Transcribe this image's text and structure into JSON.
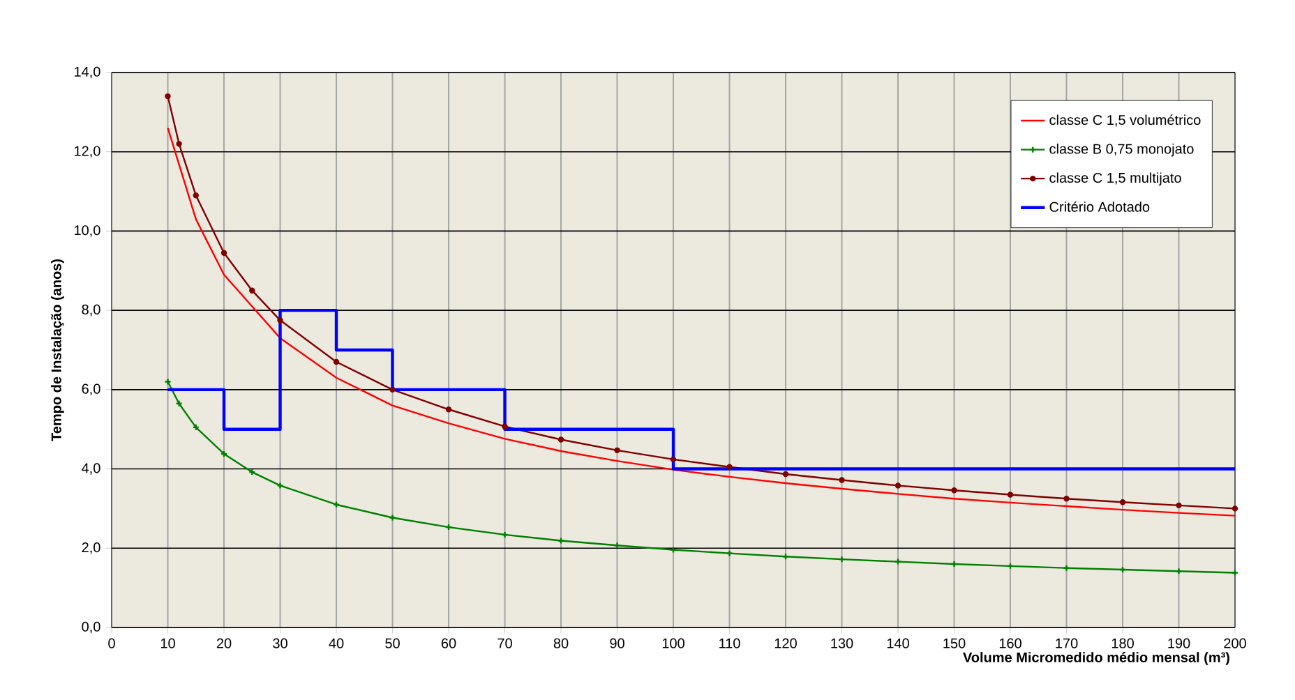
{
  "chart_data": {
    "type": "line",
    "xlabel": "Volume Micromedido médio mensal (m³)",
    "ylabel": "Tempo de Instalação (anos)",
    "xlim": [
      0,
      200
    ],
    "ylim": [
      0,
      14
    ],
    "xticks": [
      0,
      10,
      20,
      30,
      40,
      50,
      60,
      70,
      80,
      90,
      100,
      110,
      120,
      130,
      140,
      150,
      160,
      170,
      180,
      190,
      200
    ],
    "yticks": [
      {
        "value": 0,
        "label": "0,0"
      },
      {
        "value": 2,
        "label": "2,0"
      },
      {
        "value": 4,
        "label": "4,0"
      },
      {
        "value": 6,
        "label": "6,0"
      },
      {
        "value": 8,
        "label": "8,0"
      },
      {
        "value": 10,
        "label": "10,0"
      },
      {
        "value": 12,
        "label": "12,0"
      },
      {
        "value": 14,
        "label": "14,0"
      }
    ],
    "grid": true,
    "legend": "top right",
    "series": [
      {
        "name": "classe C 1,5 volumétrico",
        "color": "#ff0000",
        "marker": "none",
        "x": [
          10,
          15,
          20,
          30,
          40,
          50,
          60,
          70,
          80,
          90,
          100,
          110,
          120,
          130,
          140,
          150,
          160,
          170,
          180,
          190,
          200
        ],
        "values": [
          12.6,
          10.3,
          8.9,
          7.3,
          6.3,
          5.6,
          5.15,
          4.76,
          4.45,
          4.2,
          3.98,
          3.8,
          3.64,
          3.5,
          3.37,
          3.25,
          3.15,
          3.06,
          2.97,
          2.89,
          2.82
        ]
      },
      {
        "name": "classe B 0,75 monojato",
        "color": "#008000",
        "marker": "cross",
        "x": [
          10,
          12,
          15,
          20,
          25,
          30,
          40,
          50,
          60,
          70,
          80,
          90,
          100,
          110,
          120,
          130,
          140,
          150,
          160,
          170,
          180,
          190,
          200
        ],
        "values": [
          6.2,
          5.65,
          5.05,
          4.38,
          3.92,
          3.58,
          3.1,
          2.77,
          2.53,
          2.34,
          2.19,
          2.07,
          1.96,
          1.87,
          1.79,
          1.72,
          1.66,
          1.6,
          1.55,
          1.5,
          1.46,
          1.42,
          1.38
        ]
      },
      {
        "name": "classe C 1,5 multijato",
        "color": "#800000",
        "marker": "circle",
        "x": [
          10,
          12,
          15,
          20,
          25,
          30,
          40,
          50,
          60,
          70,
          80,
          90,
          100,
          110,
          120,
          130,
          140,
          150,
          160,
          170,
          180,
          190,
          200
        ],
        "values": [
          13.4,
          12.2,
          10.9,
          9.45,
          8.5,
          7.75,
          6.7,
          6.0,
          5.5,
          5.07,
          4.74,
          4.47,
          4.24,
          4.05,
          3.87,
          3.72,
          3.58,
          3.46,
          3.35,
          3.25,
          3.16,
          3.08,
          3.0
        ]
      },
      {
        "name": "Critério Adotado",
        "color": "#0000ff",
        "type": "step",
        "marker": "none",
        "x": [
          10,
          20,
          30,
          40,
          50,
          70,
          100,
          200
        ],
        "values": [
          6,
          5,
          8,
          7,
          6,
          5,
          4,
          4
        ]
      }
    ]
  }
}
